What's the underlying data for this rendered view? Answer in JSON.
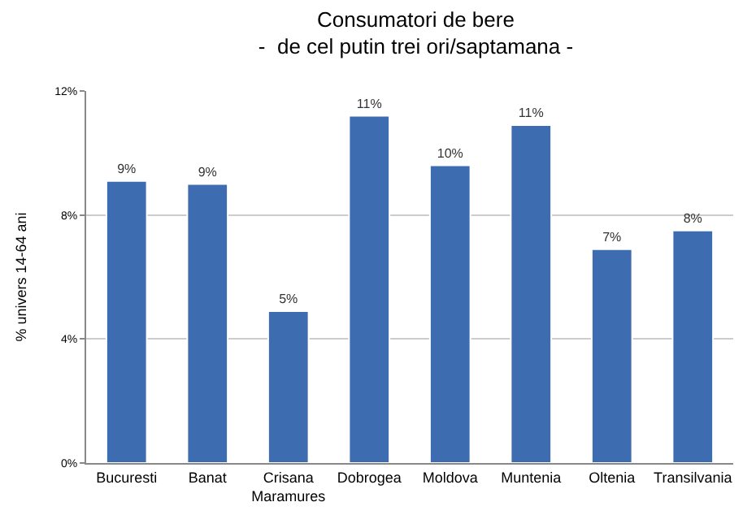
{
  "chart_data": {
    "type": "bar",
    "title": "Consumatori de bere\n-  de cel putin trei ori/saptamana -",
    "ylabel": "% univers 14-64 ani",
    "categories": [
      "Bucuresti",
      "Banat",
      "Crisana\nMaramures",
      "Dobrogea",
      "Moldova",
      "Muntenia",
      "Oltenia",
      "Transilvania"
    ],
    "values": [
      9.1,
      9.0,
      4.9,
      11.2,
      9.6,
      10.9,
      6.9,
      7.5
    ],
    "value_labels": [
      "9%",
      "9%",
      "5%",
      "11%",
      "10%",
      "11%",
      "7%",
      "8%"
    ],
    "color": "#3d6db0",
    "ylim": [
      0,
      12
    ],
    "yticks": [
      {
        "value": 0,
        "label": "0%"
      },
      {
        "value": 4,
        "label": "4%"
      },
      {
        "value": 8,
        "label": "8%"
      },
      {
        "value": 12,
        "label": "12%"
      }
    ],
    "grid": "y"
  }
}
